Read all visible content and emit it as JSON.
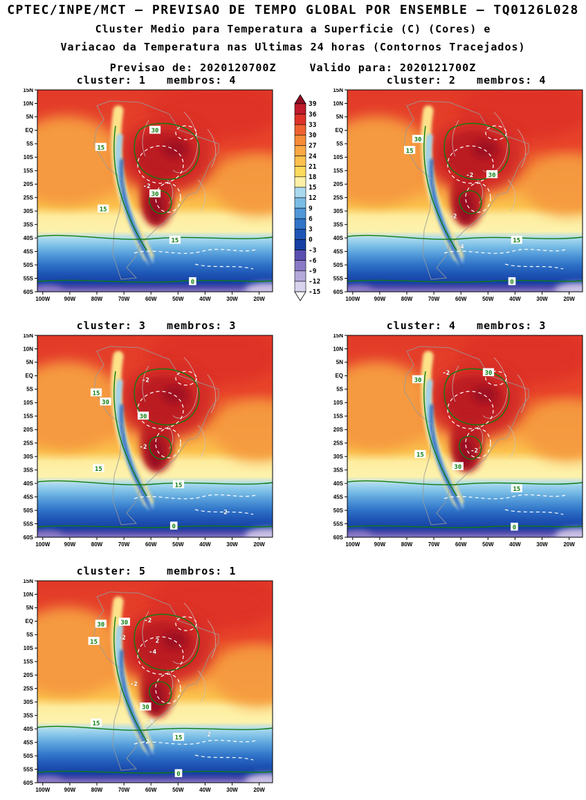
{
  "header": {
    "title": "CPTEC/INPE/MCT — PREVISAO DE TEMPO GLOBAL POR ENSEMBLE — TQ0126L028",
    "subtitle1": "Cluster Medio para Temperatura a Superficie (C) (Cores) e",
    "subtitle2": "Variacao da Temperatura nas Ultimas 24 horas (Contornos Tracejados)",
    "forecast_init": "Previsao de: 2020120700Z",
    "forecast_valid": "Valido para: 2020121700Z"
  },
  "chart_data": {
    "type": "heatmap",
    "description": "Ensemble cluster mean surface temperature (shaded, C) over South America with 24h temperature change (dashed contours); 5 cluster panels.",
    "shaded_field": "Cluster Medio para Temperatura a Superficie (C)",
    "dashed_field": "Variacao da Temperatura nas Ultimas 24 horas",
    "lat_ticks": [
      "15N",
      "10N",
      "5N",
      "EQ",
      "5S",
      "10S",
      "15S",
      "20S",
      "25S",
      "30S",
      "35S",
      "40S",
      "45S",
      "50S",
      "55S",
      "60S"
    ],
    "lon_ticks": [
      "100W",
      "90W",
      "80W",
      "70W",
      "60W",
      "50W",
      "40W",
      "30W",
      "20W"
    ],
    "colorbar": {
      "levels": [
        39,
        36,
        33,
        30,
        27,
        24,
        21,
        18,
        15,
        12,
        9,
        6,
        3,
        0,
        -3,
        -6,
        -9,
        -12,
        -15
      ],
      "segment_colors": [
        "#bf1b2c",
        "#de3227",
        "#ee6230",
        "#f68b38",
        "#f9a845",
        "#fcc04d",
        "#fdd95c",
        "#fdf0a6",
        "#a9d9ef",
        "#79bde6",
        "#4f97d8",
        "#2f73c8",
        "#1e55b5",
        "#163fa3",
        "#5a4fb0",
        "#8a7ac6",
        "#b3a8d9",
        "#d8d2ec"
      ],
      "above_color": "#8f0e22",
      "below_color": "#ffffff"
    },
    "panels": [
      {
        "cluster": 1,
        "membros": 4,
        "title": "cluster: 1   membros: 4",
        "contour_labels": [
          {
            "text": "30",
            "type": "temp",
            "x": 0.5,
            "y": 0.2
          },
          {
            "text": "15",
            "type": "temp",
            "x": 0.27,
            "y": 0.285
          },
          {
            "text": "-2",
            "type": "delta",
            "x": 0.465,
            "y": 0.475
          },
          {
            "text": "30",
            "type": "temp",
            "x": 0.5,
            "y": 0.515
          },
          {
            "text": "15",
            "type": "temp",
            "x": 0.28,
            "y": 0.59
          },
          {
            "text": "15",
            "type": "temp",
            "x": 0.585,
            "y": 0.745
          },
          {
            "text": "0",
            "type": "temp",
            "x": 0.66,
            "y": 0.95
          }
        ]
      },
      {
        "cluster": 2,
        "membros": 4,
        "title": "cluster: 2   membros: 4",
        "contour_labels": [
          {
            "text": "30",
            "type": "temp",
            "x": 0.3,
            "y": 0.245
          },
          {
            "text": "15",
            "type": "temp",
            "x": 0.265,
            "y": 0.3
          },
          {
            "text": "-2",
            "type": "delta",
            "x": 0.52,
            "y": 0.42
          },
          {
            "text": "30",
            "type": "temp",
            "x": 0.615,
            "y": 0.42
          },
          {
            "text": "-2",
            "type": "delta",
            "x": 0.45,
            "y": 0.625
          },
          {
            "text": "-4",
            "type": "delta",
            "x": 0.48,
            "y": 0.775
          },
          {
            "text": "15",
            "type": "temp",
            "x": 0.72,
            "y": 0.745
          },
          {
            "text": "0",
            "type": "temp",
            "x": 0.7,
            "y": 0.95
          }
        ]
      },
      {
        "cluster": 3,
        "membros": 3,
        "title": "cluster: 3   membros: 3",
        "contour_labels": [
          {
            "text": "-2",
            "type": "delta",
            "x": 0.46,
            "y": 0.22
          },
          {
            "text": "15",
            "type": "temp",
            "x": 0.25,
            "y": 0.285
          },
          {
            "text": "30",
            "type": "temp",
            "x": 0.29,
            "y": 0.33
          },
          {
            "text": "30",
            "type": "temp",
            "x": 0.45,
            "y": 0.4
          },
          {
            "text": "-2",
            "type": "delta",
            "x": 0.45,
            "y": 0.55
          },
          {
            "text": "15",
            "type": "temp",
            "x": 0.26,
            "y": 0.66
          },
          {
            "text": "15",
            "type": "temp",
            "x": 0.6,
            "y": 0.74
          },
          {
            "text": "2",
            "type": "delta",
            "x": 0.8,
            "y": 0.875
          },
          {
            "text": "0",
            "type": "temp",
            "x": 0.58,
            "y": 0.945
          }
        ]
      },
      {
        "cluster": 4,
        "membros": 3,
        "title": "cluster: 4   membros: 3",
        "contour_labels": [
          {
            "text": "-2",
            "type": "delta",
            "x": 0.42,
            "y": 0.185
          },
          {
            "text": "30",
            "type": "temp",
            "x": 0.6,
            "y": 0.185
          },
          {
            "text": "30",
            "type": "temp",
            "x": 0.3,
            "y": 0.22
          },
          {
            "text": "-2",
            "type": "delta",
            "x": 0.54,
            "y": 0.57
          },
          {
            "text": "15",
            "type": "temp",
            "x": 0.31,
            "y": 0.59
          },
          {
            "text": "30",
            "type": "temp",
            "x": 0.47,
            "y": 0.65
          },
          {
            "text": "15",
            "type": "temp",
            "x": 0.72,
            "y": 0.76
          },
          {
            "text": "0",
            "type": "temp",
            "x": 0.71,
            "y": 0.95
          }
        ]
      },
      {
        "cluster": 5,
        "membros": 1,
        "title": "cluster: 5   membros: 1",
        "contour_labels": [
          {
            "text": "30",
            "type": "temp",
            "x": 0.27,
            "y": 0.215
          },
          {
            "text": "30",
            "type": "temp",
            "x": 0.37,
            "y": 0.205
          },
          {
            "text": "-2",
            "type": "delta",
            "x": 0.47,
            "y": 0.195
          },
          {
            "text": "15",
            "type": "temp",
            "x": 0.24,
            "y": 0.3
          },
          {
            "text": "-2",
            "type": "delta",
            "x": 0.36,
            "y": 0.28
          },
          {
            "text": "2",
            "type": "delta",
            "x": 0.51,
            "y": 0.295
          },
          {
            "text": "-4",
            "type": "delta",
            "x": 0.49,
            "y": 0.35
          },
          {
            "text": "-2",
            "type": "delta",
            "x": 0.41,
            "y": 0.51
          },
          {
            "text": "30",
            "type": "temp",
            "x": 0.46,
            "y": 0.625
          },
          {
            "text": "-6",
            "type": "delta",
            "x": 0.48,
            "y": 0.695
          },
          {
            "text": "15",
            "type": "temp",
            "x": 0.25,
            "y": 0.705
          },
          {
            "text": "-2",
            "type": "delta",
            "x": 0.46,
            "y": 0.795
          },
          {
            "text": "15",
            "type": "temp",
            "x": 0.6,
            "y": 0.775
          },
          {
            "text": "2",
            "type": "delta",
            "x": 0.73,
            "y": 0.76
          },
          {
            "text": "0",
            "type": "temp",
            "x": 0.6,
            "y": 0.955
          }
        ]
      }
    ]
  }
}
